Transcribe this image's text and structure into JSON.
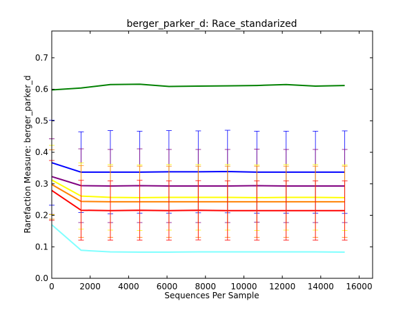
{
  "chart_data": {
    "type": "line",
    "title": "berger_parker_d: Race_standarized",
    "xlabel": "Sequences Per Sample",
    "ylabel": "Rarefaction Measure: berger_parker_d",
    "xlim": [
      0,
      16700
    ],
    "ylim": [
      0,
      0.785
    ],
    "xticks": [
      0,
      2000,
      4000,
      6000,
      8000,
      10000,
      12000,
      14000,
      16000
    ],
    "xtick_labels": [
      "0",
      "2000",
      "4000",
      "6000",
      "8000",
      "10000",
      "12000",
      "14000",
      "16000"
    ],
    "yticks": [
      0.0,
      0.1,
      0.2,
      0.3,
      0.4,
      0.5,
      0.6,
      0.7
    ],
    "ytick_labels": [
      "0.0",
      "0.1",
      "0.2",
      "0.3",
      "0.4",
      "0.5",
      "0.6",
      "0.7"
    ],
    "grid": false,
    "legend": "none",
    "x": [
      0,
      1525,
      3050,
      4575,
      6100,
      7625,
      9150,
      10675,
      12200,
      13725,
      15250
    ],
    "series": [
      {
        "color": "#008000",
        "values": [
          0.598,
          0.604,
          0.615,
          0.616,
          0.609,
          0.61,
          0.611,
          0.612,
          0.615,
          0.61,
          0.612
        ],
        "error": [
          0,
          0,
          0,
          0,
          0,
          0,
          0,
          0,
          0,
          0,
          0
        ]
      },
      {
        "color": "#0000ff",
        "values": [
          0.367,
          0.337,
          0.337,
          0.337,
          0.338,
          0.338,
          0.339,
          0.337,
          0.337,
          0.337,
          0.337
        ],
        "error": [
          0.135,
          0.128,
          0.132,
          0.13,
          0.131,
          0.13,
          0.131,
          0.13,
          0.13,
          0.13,
          0.131
        ]
      },
      {
        "color": "#800080",
        "values": [
          0.323,
          0.294,
          0.293,
          0.294,
          0.293,
          0.293,
          0.293,
          0.294,
          0.293,
          0.293,
          0.293
        ],
        "error": [
          0.12,
          0.117,
          0.116,
          0.117,
          0.116,
          0.116,
          0.116,
          0.116,
          0.116,
          0.116,
          0.116
        ]
      },
      {
        "color": "#ffff00",
        "values": [
          0.312,
          0.261,
          0.257,
          0.256,
          0.257,
          0.257,
          0.257,
          0.256,
          0.257,
          0.257,
          0.256
        ],
        "error": [
          0.11,
          0.105,
          0.104,
          0.104,
          0.104,
          0.104,
          0.104,
          0.104,
          0.104,
          0.104,
          0.104
        ]
      },
      {
        "color": "#ff8000",
        "values": [
          0.298,
          0.244,
          0.243,
          0.243,
          0.243,
          0.243,
          0.243,
          0.243,
          0.243,
          0.243,
          0.243
        ],
        "error": [
          0.11,
          0.114,
          0.113,
          0.113,
          0.113,
          0.113,
          0.113,
          0.113,
          0.113,
          0.113,
          0.113
        ]
      },
      {
        "color": "#ff0000",
        "values": [
          0.279,
          0.216,
          0.215,
          0.216,
          0.215,
          0.216,
          0.215,
          0.215,
          0.215,
          0.215,
          0.215
        ],
        "error": [
          0.095,
          0.095,
          0.094,
          0.095,
          0.094,
          0.094,
          0.094,
          0.094,
          0.094,
          0.094,
          0.094
        ]
      },
      {
        "color": "#80ffff",
        "values": [
          0.17,
          0.089,
          0.084,
          0.083,
          0.083,
          0.084,
          0.084,
          0.084,
          0.084,
          0.084,
          0.083
        ],
        "error": [
          0,
          0,
          0,
          0,
          0,
          0,
          0,
          0,
          0,
          0,
          0
        ]
      }
    ]
  }
}
